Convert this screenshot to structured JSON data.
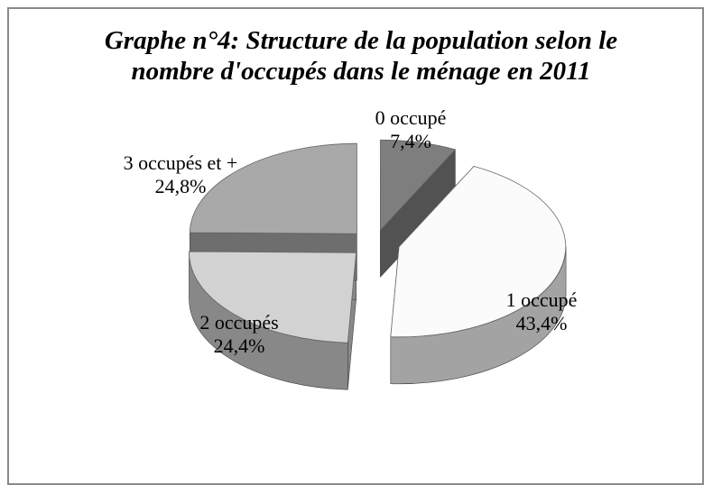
{
  "chart_data": {
    "type": "pie",
    "title": "Graphe n°4: Structure de la population selon le nombre d'occupés dans le ménage en 2011",
    "categories": [
      "0 occupé",
      "1 occupé",
      "2 occupés",
      "3 occupés et +"
    ],
    "values": [
      7.4,
      43.4,
      24.4,
      24.8
    ],
    "value_labels": [
      "7,4%",
      "43,4%",
      "24,4%",
      "24,8%"
    ],
    "colors": [
      "#7e7e7e",
      "#fbfbfb",
      "#d2d2d2",
      "#a9a9a9"
    ]
  }
}
